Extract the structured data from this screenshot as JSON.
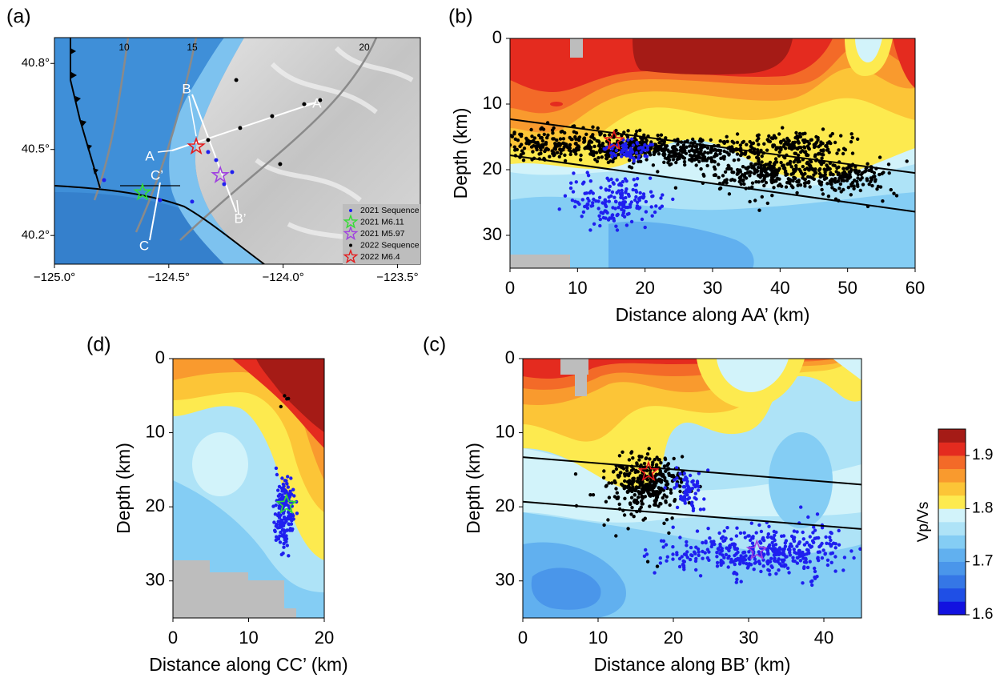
{
  "chart_data": [
    {
      "type": "map",
      "panel_label": "(a)",
      "xlim": [
        -125.0,
        -123.4
      ],
      "xticks": [
        {
          "value": -125.0,
          "label": "−125.0°"
        },
        {
          "value": -124.5,
          "label": "−124.5°"
        },
        {
          "value": -124.0,
          "label": "−124.0°"
        },
        {
          "value": -123.5,
          "label": "−123.5°"
        }
      ],
      "ylim": [
        40.1,
        40.89
      ],
      "yticks": [
        {
          "value": 40.2,
          "label": "40.2°"
        },
        {
          "value": 40.5,
          "label": "40.5°"
        },
        {
          "value": 40.8,
          "label": "40.8°"
        }
      ],
      "distance_labels": [
        "10",
        "15",
        "20"
      ],
      "profile_labels": [
        "A",
        "A’",
        "B",
        "B’",
        "C",
        "C’"
      ],
      "legend": "lower right",
      "series": [
        {
          "name": "2021 Sequence",
          "marker": "dot",
          "color": "#1f1fef",
          "x": [
            -124.293,
            -124.258,
            -124.223,
            -124.538,
            -124.398,
            -124.783,
            -124.328
          ],
          "values": [
            40.463,
            40.379,
            40.421,
            40.323,
            40.318,
            40.393,
            40.491
          ]
        },
        {
          "name": "2021 M6.11",
          "marker": "star",
          "color": "#33dd33",
          "x": [
            -124.615
          ],
          "values": [
            40.35
          ]
        },
        {
          "name": "2021 M5.97",
          "marker": "star",
          "color": "#a040e0",
          "x": [
            -124.275
          ],
          "values": [
            40.41
          ]
        },
        {
          "name": "2022 Sequence",
          "marker": "dot",
          "color": "#000000",
          "x": [
            -124.328,
            -124.188,
            -124.048,
            -123.908,
            -123.838,
            -124.013,
            -124.205
          ],
          "values": [
            40.533,
            40.575,
            40.616,
            40.658,
            40.672,
            40.449,
            40.742
          ]
        },
        {
          "name": "2022 M6.4",
          "marker": "star",
          "color": "#e41a1c",
          "x": [
            -124.38
          ],
          "values": [
            40.51
          ]
        }
      ]
    },
    {
      "type": "cross-section",
      "panel_label": "(b)",
      "xlabel": "Distance along AA’ (km)",
      "ylabel": "Depth (km)",
      "xlim": [
        0,
        60
      ],
      "ylim": [
        0,
        35
      ],
      "y_inverted": true,
      "xticks": [
        0,
        10,
        20,
        30,
        40,
        50,
        60
      ],
      "yticks": [
        0,
        10,
        20,
        30
      ],
      "series": [
        {
          "marker": "line",
          "color": "#000000",
          "x": [
            0,
            60
          ],
          "values": [
            12.3,
            20.5
          ]
        },
        {
          "marker": "line",
          "color": "#000000",
          "x": [
            0,
            60
          ],
          "values": [
            17.8,
            26.4
          ]
        },
        {
          "marker": "star",
          "color": "#e41a1c",
          "x": [
            15.4
          ],
          "values": [
            15.6
          ]
        }
      ]
    },
    {
      "type": "cross-section",
      "panel_label": "(c)",
      "xlabel": "Distance along BB’ (km)",
      "ylabel": "Depth (km)",
      "xlim": [
        0,
        45
      ],
      "ylim": [
        0,
        35
      ],
      "y_inverted": true,
      "xticks": [
        0,
        10,
        20,
        30,
        40
      ],
      "yticks": [
        0,
        10,
        20,
        30
      ],
      "series": [
        {
          "marker": "line",
          "color": "#000000",
          "x": [
            0,
            45
          ],
          "values": [
            13.3,
            17.0
          ]
        },
        {
          "marker": "line",
          "color": "#000000",
          "x": [
            0,
            45
          ],
          "values": [
            19.3,
            23.0
          ]
        },
        {
          "marker": "star",
          "color": "#e41a1c",
          "x": [
            16.7
          ],
          "values": [
            15.3
          ]
        },
        {
          "marker": "star",
          "color": "#a040e0",
          "x": [
            31.1
          ],
          "values": [
            25.9
          ]
        }
      ]
    },
    {
      "type": "cross-section",
      "panel_label": "(d)",
      "xlabel": "Distance along CC’ (km)",
      "ylabel": "Depth (km)",
      "xlim": [
        0,
        20
      ],
      "ylim": [
        0,
        35
      ],
      "y_inverted": true,
      "xticks": [
        0,
        10,
        20
      ],
      "yticks": [
        0,
        10,
        20,
        30
      ],
      "series": [
        {
          "marker": "star",
          "color": "#33dd33",
          "x": [
            15.0
          ],
          "values": [
            19.7
          ]
        }
      ]
    },
    {
      "type": "colorbar",
      "label": "Vp/Vs",
      "ylim": [
        1.6,
        1.95
      ],
      "yticks": [
        1.6,
        1.7,
        1.8,
        1.9
      ],
      "colors": [
        "#1212e0",
        "#1f4fe6",
        "#3577e6",
        "#4a96ea",
        "#61b0ef",
        "#84cdf4",
        "#aee3f7",
        "#d2f3fa",
        "#fdea4f",
        "#fcc537",
        "#f99a2e",
        "#f36a28",
        "#e42b1f",
        "#a51b16"
      ]
    }
  ]
}
